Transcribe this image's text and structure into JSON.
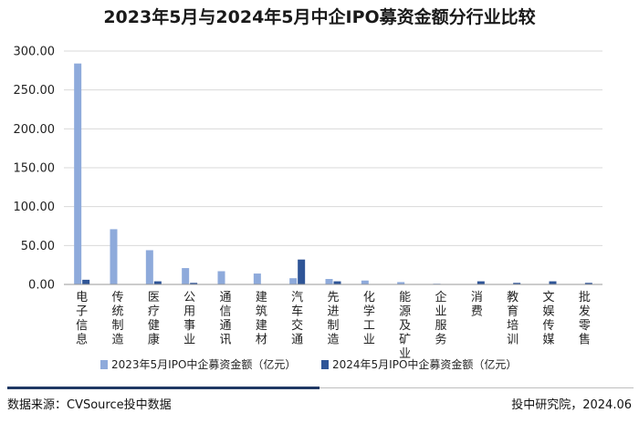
{
  "chart_data": {
    "type": "bar",
    "title": "2023年5月与2024年5月中企IPO募资金额分行业比较",
    "xlabel": "",
    "ylabel": "",
    "ylim": [
      0,
      300
    ],
    "yticks": [
      "0.00",
      "50.00",
      "100.00",
      "150.00",
      "200.00",
      "250.00",
      "300.00"
    ],
    "grid": true,
    "legend_position": "bottom",
    "categories": [
      "电子信息",
      "传统制造",
      "医疗健康",
      "公用事业",
      "通信通讯",
      "建筑建材",
      "汽车交通",
      "先进制造",
      "化学工业",
      "能源及矿业",
      "企业服务",
      "消费",
      "教育培训",
      "文娱传媒",
      "批发零售"
    ],
    "series": [
      {
        "name": "2023年5月IPO中企募资金额（亿元）",
        "color": "#8eaadb",
        "values": [
          284,
          71,
          44,
          21,
          17,
          14,
          8,
          7,
          5,
          3,
          1,
          0,
          0,
          0,
          0
        ]
      },
      {
        "name": "2024年5月IPO中企募资金额（亿元）",
        "color": "#2f5597",
        "values": [
          6,
          0,
          4,
          2,
          0,
          0,
          32,
          4,
          0,
          0,
          0,
          4,
          2,
          4,
          2
        ]
      }
    ]
  },
  "footer": {
    "source": "数据来源：CVSource投中数据",
    "credit": "投中研究院，2024.06"
  },
  "colors": {
    "accent_bar": "#1f3864",
    "grid": "#d9d9d9"
  }
}
